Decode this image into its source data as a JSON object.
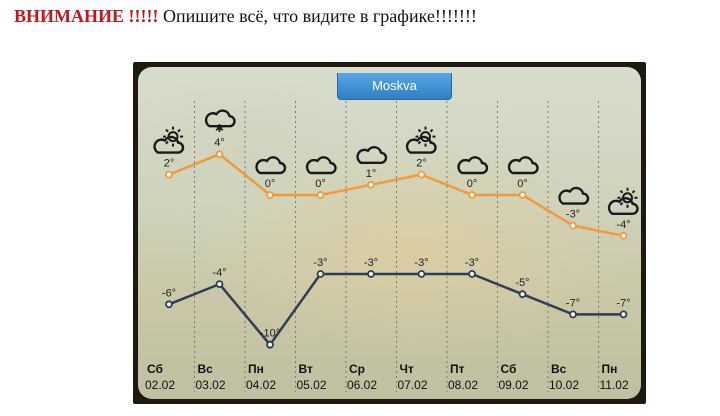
{
  "heading": {
    "warning": "ВНИМАНИЕ !!!!!",
    "text": " Опишите всё, что видите в графике!!!!!!!"
  },
  "widget": {
    "city": "Moskva"
  },
  "colors": {
    "high_line": "#f29a3a",
    "low_line": "#2e3e58"
  },
  "chart_data": {
    "type": "line",
    "x": [
      "02.02",
      "03.02",
      "04.02",
      "05.02",
      "06.02",
      "07.02",
      "08.02",
      "09.02",
      "10.02",
      "11.02"
    ],
    "days": [
      "Сб",
      "Вс",
      "Пн",
      "Вт",
      "Ср",
      "Чт",
      "Пт",
      "Сб",
      "Вс",
      "Пн"
    ],
    "icons": [
      "partly-sunny-icon",
      "snow-cloud-icon",
      "cloud-icon",
      "cloud-icon",
      "cloud-icon",
      "partly-sunny-icon",
      "cloud-icon",
      "cloud-icon",
      "cloud-icon",
      "partly-sunny-icon"
    ],
    "series": [
      {
        "values": [
          2,
          4,
          0,
          0,
          1,
          2,
          0,
          0,
          -3,
          -4
        ],
        "labels": [
          "2°",
          "4°",
          "0°",
          "0°",
          "1°",
          "2°",
          "0°",
          "0°",
          "-3°",
          "-4°"
        ]
      },
      {
        "values": [
          -6,
          -4,
          -10,
          -3,
          -3,
          -3,
          -3,
          -5,
          -7,
          -7
        ],
        "labels": [
          "-6°",
          "-4°",
          "-10°",
          "-3°",
          "-3°",
          "-3°",
          "-3°",
          "-5°",
          "-7°",
          "-7°"
        ]
      }
    ]
  }
}
